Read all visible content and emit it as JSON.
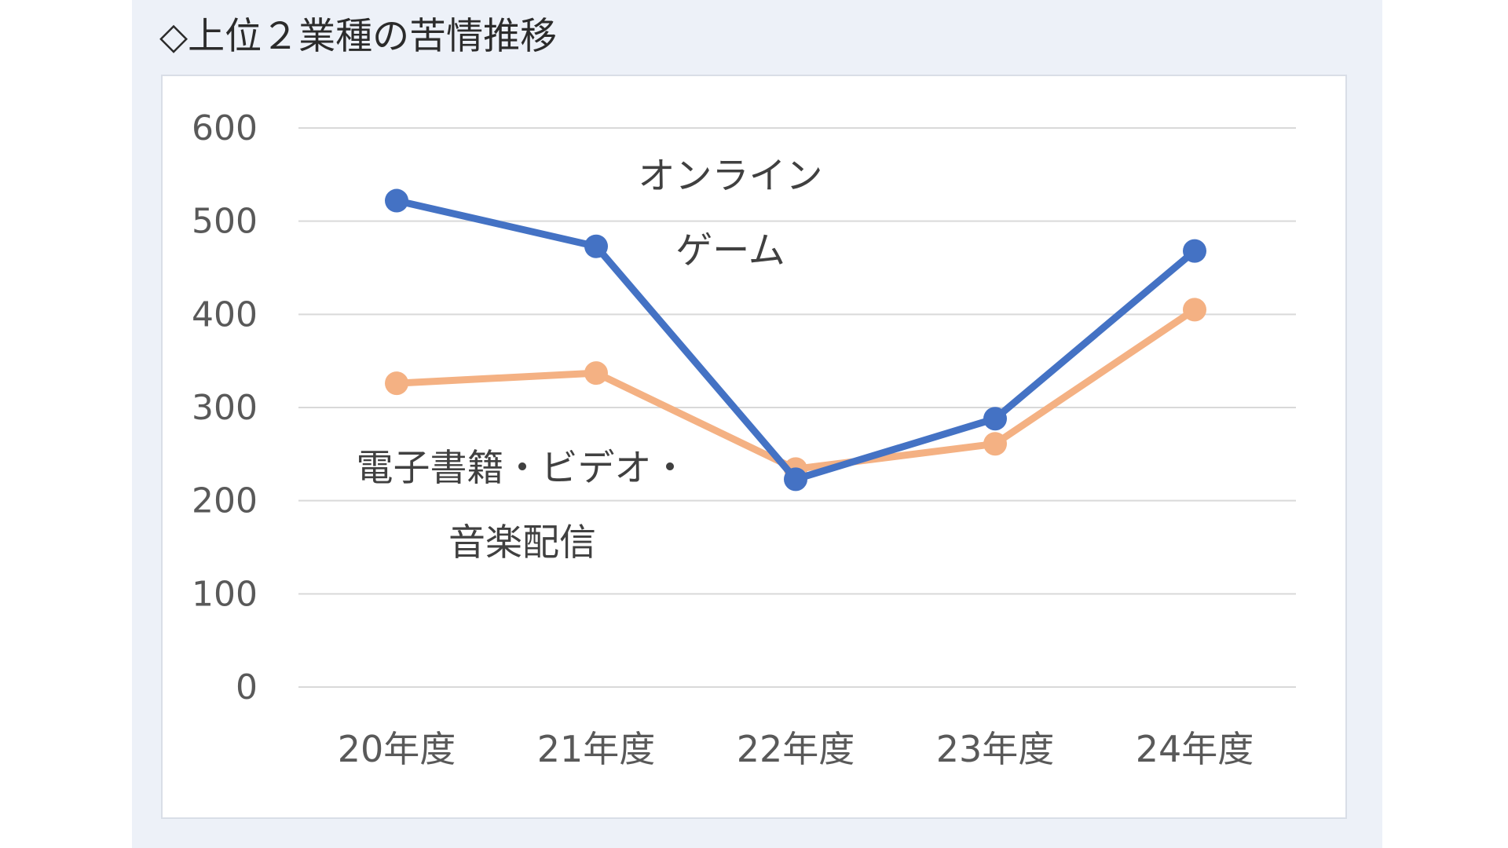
{
  "title": "◇上位２業種の苦情推移",
  "colors": {
    "panel_background": "#edf1f8",
    "chart_background": "#ffffff",
    "gridline": "#d9d9d9"
  },
  "chart_data": {
    "type": "line",
    "title": "",
    "xlabel": "",
    "ylabel": "",
    "categories": [
      "20年度",
      "21年度",
      "22年度",
      "23年度",
      "24年度"
    ],
    "ylim": [
      0,
      600
    ],
    "yticks": [
      0,
      100,
      200,
      300,
      400,
      500,
      600
    ],
    "grid": true,
    "legend": "none (series labeled directly on plot)",
    "series": [
      {
        "name": "オンラインゲーム",
        "label_lines": [
          "オンライン",
          "ゲーム"
        ],
        "label_position": "above the line, between 21年度 and 22年度",
        "color": "#4472c4",
        "marker": "circle",
        "values": [
          522,
          473,
          223,
          288,
          468
        ]
      },
      {
        "name": "電子書籍・ビデオ・音楽配信",
        "label_lines": [
          "電子書籍・ビデオ・",
          "音楽配信"
        ],
        "label_position": "below the line, left side",
        "color": "#f4b183",
        "marker": "circle",
        "values": [
          326,
          337,
          234,
          261,
          405
        ]
      }
    ]
  }
}
